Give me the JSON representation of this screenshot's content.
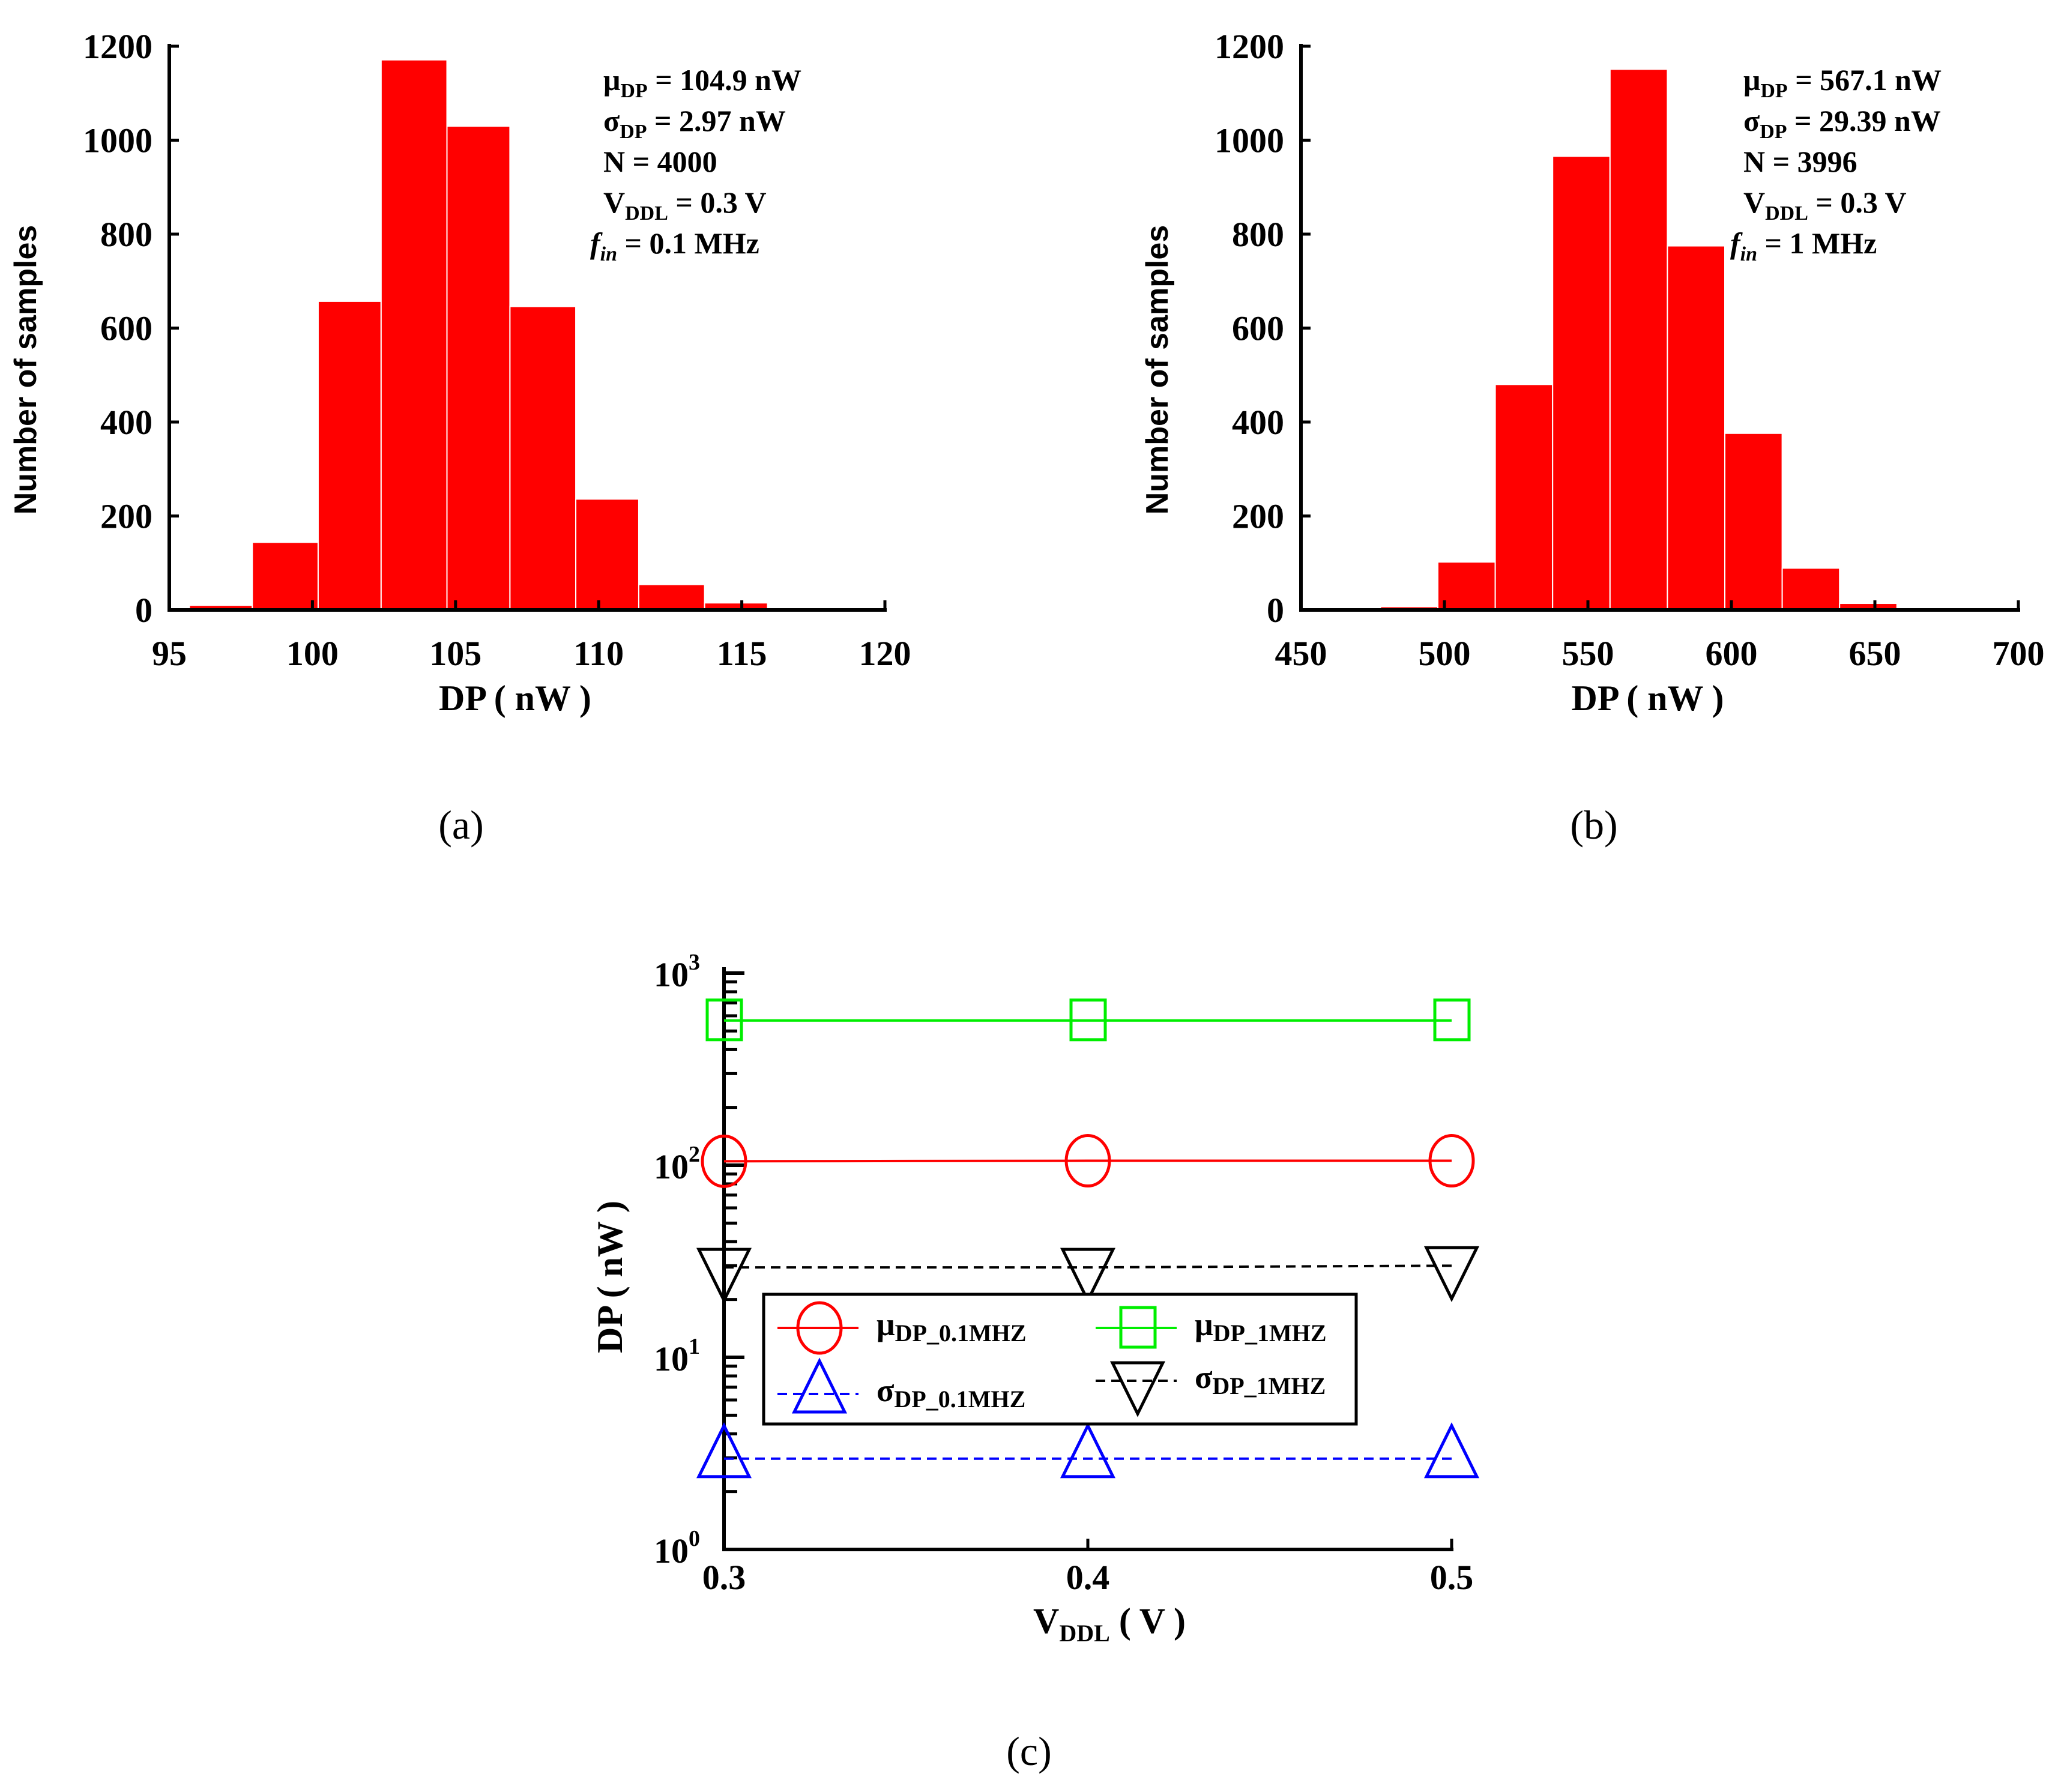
{
  "chart_data": [
    {
      "type": "bar",
      "panel": "(a)",
      "xlabel": "DP ( nW )",
      "ylabel": "Number of samples",
      "xlim": [
        95,
        120
      ],
      "ylim": [
        0,
        1200
      ],
      "xticks": [
        "95",
        "100",
        "105",
        "110",
        "115",
        "120"
      ],
      "yticks": [
        "0",
        "200",
        "400",
        "600",
        "800",
        "1000",
        "1200"
      ],
      "bin_edges": [
        95.7,
        97.9,
        100.2,
        102.4,
        104.7,
        106.9,
        109.2,
        111.4,
        113.7,
        115.9,
        118.2
      ],
      "values": [
        10,
        144,
        657,
        1171,
        1030,
        646,
        236,
        54,
        15,
        3
      ],
      "bar_color": "#ff0000",
      "annotations": [
        {
          "sym": "μ",
          "sub": "DP",
          "rest": " = 104.9 nW"
        },
        {
          "sym": "σ",
          "sub": "DP",
          "rest": " = 2.97 nW"
        },
        {
          "sym": "N = 4000",
          "sub": "",
          "rest": ""
        },
        {
          "sym": "V",
          "sub": "DDL",
          "rest": " = 0.3 V"
        },
        {
          "sym": "f",
          "sub": "in",
          "rest": " = 0.1 MHz",
          "italic": true
        }
      ]
    },
    {
      "type": "bar",
      "panel": "(b)",
      "xlabel": "DP ( nW )",
      "ylabel": "Number of samples",
      "xlim": [
        450,
        700
      ],
      "ylim": [
        0,
        1200
      ],
      "xticks": [
        "450",
        "500",
        "550",
        "600",
        "650",
        "700"
      ],
      "yticks": [
        "0",
        "200",
        "400",
        "600",
        "800",
        "1000",
        "1200"
      ],
      "bin_edges": [
        477.7,
        497.7,
        517.7,
        537.7,
        557.7,
        577.7,
        597.7,
        617.7,
        637.7,
        657.7
      ],
      "values": [
        7,
        102,
        480,
        966,
        1151,
        775,
        376,
        89,
        14
      ],
      "bar_color": "#ff0000",
      "annotations": [
        {
          "sym": "μ",
          "sub": "DP",
          "rest": " = 567.1 nW"
        },
        {
          "sym": "σ",
          "sub": "DP",
          "rest": " = 29.39 nW"
        },
        {
          "sym": "N = 3996",
          "sub": "",
          "rest": ""
        },
        {
          "sym": "V",
          "sub": "DDL",
          "rest": " = 0.3 V"
        },
        {
          "sym": "f",
          "sub": "in",
          "rest": " = 1 MHz",
          "italic": true
        }
      ]
    },
    {
      "type": "line",
      "panel": "(c)",
      "xlabel": {
        "main": "V",
        "sub": "DDL",
        "rest": " ( V )"
      },
      "ylabel": "DP ( nW )",
      "yscale": "log",
      "xlim": [
        0.3,
        0.5
      ],
      "ylim": [
        1,
        1000
      ],
      "x": [
        0.3,
        0.4,
        0.5
      ],
      "xticks": [
        "0.3",
        "0.4",
        "0.5"
      ],
      "yticks": [
        {
          "base": "10",
          "exp": "0"
        },
        {
          "base": "10",
          "exp": "1"
        },
        {
          "base": "10",
          "exp": "2"
        },
        {
          "base": "10",
          "exp": "3"
        }
      ],
      "legend_placement": "center-left",
      "series": [
        {
          "name": {
            "sym": "μ",
            "sub": "DP_0.1MHZ"
          },
          "values": [
            104.9,
            105.5,
            105.5
          ],
          "color": "#ff0000",
          "marker": "circle",
          "dash": false
        },
        {
          "name": {
            "sym": "μ",
            "sub": "DP_1MHZ"
          },
          "values": [
            567.1,
            567,
            567
          ],
          "color": "#00ee00",
          "marker": "square",
          "dash": false
        },
        {
          "name": {
            "sym": "σ",
            "sub": "DP_0.1MHZ"
          },
          "values": [
            2.97,
            2.97,
            2.97
          ],
          "color": "#0000ff",
          "marker": "triangle-up",
          "dash": true
        },
        {
          "name": {
            "sym": "σ",
            "sub": "DP_1MHZ"
          },
          "values": [
            29.39,
            29.4,
            30.0
          ],
          "color": "#000000",
          "marker": "triangle-down",
          "dash": true
        }
      ]
    }
  ]
}
